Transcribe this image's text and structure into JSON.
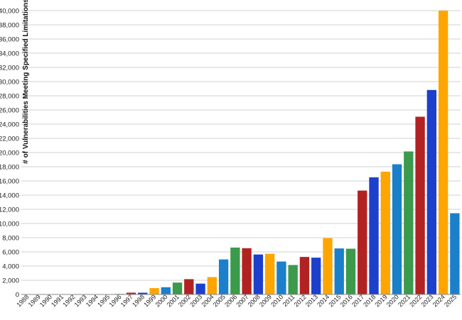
{
  "chart_data": {
    "type": "bar",
    "title": "",
    "xlabel": "",
    "ylabel": "# of Vulnerabilities Meeting Specified Limitations",
    "ylim": [
      0,
      40000
    ],
    "y_ticks": [
      "0",
      "2,000",
      "4,000",
      "6,000",
      "8,000",
      "10,000",
      "12,000",
      "14,000",
      "16,000",
      "18,000",
      "20,000",
      "22,000",
      "24,000",
      "26,000",
      "28,000",
      "30,000",
      "32,000",
      "34,000",
      "36,000",
      "38,000",
      "40,000"
    ],
    "categories": [
      "1988",
      "1989",
      "1990",
      "1991",
      "1992",
      "1993",
      "1994",
      "1995",
      "1996",
      "1997",
      "1998",
      "1999",
      "2000",
      "2001",
      "2002",
      "2003",
      "2004",
      "2005",
      "2006",
      "2007",
      "2008",
      "2009",
      "2010",
      "2011",
      "2012",
      "2013",
      "2014",
      "2015",
      "2016",
      "2017",
      "2018",
      "2019",
      "2020",
      "2021",
      "2022",
      "2023",
      "2024",
      "2025"
    ],
    "values": [
      2,
      3,
      11,
      15,
      13,
      13,
      25,
      25,
      75,
      252,
      246,
      894,
      1020,
      1677,
      2156,
      1527,
      2451,
      4935,
      6610,
      6520,
      5632,
      5732,
      4639,
      4150,
      5288,
      5186,
      7937,
      6487,
      6447,
      14643,
      16509,
      17305,
      18350,
      20155,
      25050,
      28818,
      40000,
      11450
    ],
    "bar_colors": [
      "#b22222",
      "#1c3fcc",
      "#ffa500",
      "#1b7fcc",
      "#3b9a4b",
      "#b22222",
      "#1c3fcc",
      "#ffa500",
      "#1b7fcc",
      "#b22222",
      "#1c3fcc",
      "#ffa500",
      "#1b7fcc",
      "#3b9a4b",
      "#b22222",
      "#1c3fcc",
      "#ffa500",
      "#1b7fcc",
      "#3b9a4b",
      "#b22222",
      "#1c3fcc",
      "#ffa500",
      "#1b7fcc",
      "#3b9a4b",
      "#b22222",
      "#1c3fcc",
      "#ffa500",
      "#1b7fcc",
      "#3b9a4b",
      "#b22222",
      "#1c3fcc",
      "#ffa500",
      "#1b7fcc",
      "#3b9a4b",
      "#b22222",
      "#1c3fcc",
      "#ffa500",
      "#1b7fcc"
    ],
    "grid": true,
    "legend": "none"
  }
}
